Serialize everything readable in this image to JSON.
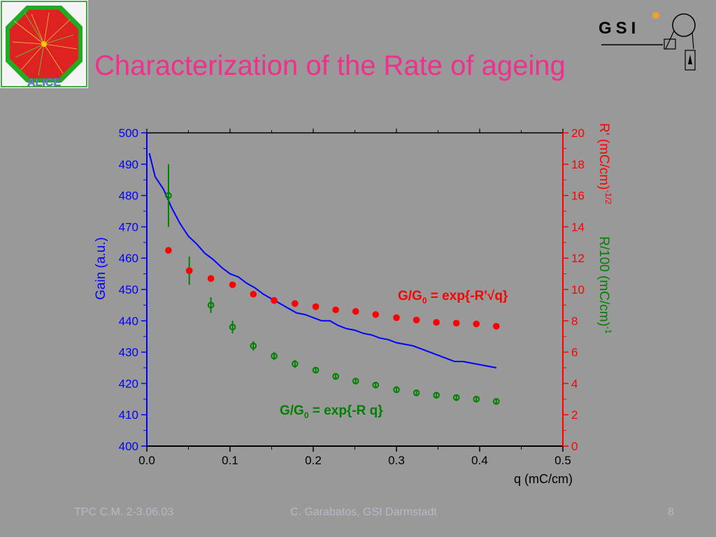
{
  "slide": {
    "title": "Characterization of the Rate of ageing",
    "footer_left": "TPC C.M. 2-3.06.03",
    "footer_center": "C. Garabatos, GSI Darmstadt",
    "page_number": "8"
  },
  "logos": {
    "alice_text": "ALICE",
    "gsi_text": "GSI"
  },
  "chart_data": {
    "type": "scatter",
    "xlabel": "q (mC/cm)",
    "xlim": [
      0.0,
      0.5
    ],
    "x_ticks": [
      "0.0",
      "0.1",
      "0.2",
      "0.3",
      "0.4",
      "0.5"
    ],
    "ylabel_left": "Gain (a.u.)",
    "ylim_left": [
      400,
      500
    ],
    "y_ticks_left": [
      "400",
      "410",
      "420",
      "430",
      "440",
      "450",
      "460",
      "470",
      "480",
      "490",
      "500"
    ],
    "ylabel_right_red": "R' (mC/cm)",
    "ylabel_right_red_exp": "-1/2",
    "ylabel_right_green": "R/100 (mC/cm)",
    "ylabel_right_green_exp": "-1",
    "ylim_right": [
      0,
      20
    ],
    "y_ticks_right": [
      "0",
      "2",
      "4",
      "6",
      "8",
      "10",
      "12",
      "14",
      "16",
      "18",
      "20"
    ],
    "colors": {
      "gain": "#0000ff",
      "red": "#ff0000",
      "green": "#008000",
      "axis": "#000000"
    },
    "series": [
      {
        "axis": "left",
        "style": "line",
        "x": [
          0.003,
          0.01,
          0.02,
          0.03,
          0.04,
          0.05,
          0.06,
          0.07,
          0.08,
          0.09,
          0.1,
          0.11,
          0.12,
          0.13,
          0.14,
          0.15,
          0.16,
          0.17,
          0.18,
          0.19,
          0.2,
          0.21,
          0.22,
          0.23,
          0.24,
          0.25,
          0.26,
          0.27,
          0.28,
          0.29,
          0.3,
          0.31,
          0.32,
          0.33,
          0.34,
          0.35,
          0.36,
          0.37,
          0.38,
          0.39,
          0.4,
          0.41,
          0.42
        ],
        "values": [
          493.5,
          486,
          482,
          476,
          471,
          467,
          464.5,
          461.5,
          459.5,
          457,
          455,
          454,
          452,
          450.5,
          448.5,
          447,
          445.5,
          444,
          442.5,
          442,
          441,
          440,
          440,
          438.5,
          437.5,
          437,
          436,
          435.5,
          434.5,
          434,
          433,
          432.5,
          432,
          431,
          430,
          429,
          428,
          427,
          427,
          426.5,
          426,
          425.5,
          425
        ]
      },
      {
        "axis": "right",
        "style": "filled-dots",
        "x": [
          0.026,
          0.051,
          0.077,
          0.103,
          0.128,
          0.153,
          0.178,
          0.203,
          0.227,
          0.251,
          0.275,
          0.3,
          0.324,
          0.348,
          0.372,
          0.396,
          0.42
        ],
        "values": [
          12.5,
          11.2,
          10.7,
          10.3,
          9.7,
          9.3,
          9.1,
          8.9,
          8.7,
          8.6,
          8.4,
          8.2,
          8.05,
          7.9,
          7.85,
          7.8,
          7.65
        ]
      },
      {
        "axis": "right",
        "style": "open-circles",
        "x": [
          0.026,
          0.051,
          0.077,
          0.103,
          0.128,
          0.153,
          0.178,
          0.203,
          0.227,
          0.251,
          0.275,
          0.3,
          0.324,
          0.348,
          0.372,
          0.396,
          0.42
        ],
        "values": [
          16.0,
          11.2,
          9.0,
          7.6,
          6.4,
          5.75,
          5.25,
          4.85,
          4.45,
          4.15,
          3.9,
          3.6,
          3.4,
          3.25,
          3.1,
          3.0,
          2.85
        ],
        "errors": [
          2.0,
          0.9,
          0.5,
          0.4,
          0.3,
          0.25,
          0.25,
          0.2,
          0.2,
          0.2,
          0.15,
          0.15,
          0.15,
          0.15,
          0.15,
          0.15,
          0.15
        ]
      }
    ],
    "annotations": [
      {
        "text_main": "G/G",
        "text_sub": "0",
        "text_rest": " = exp{-R'√q}",
        "color": "#ff0000"
      },
      {
        "text_main": "G/G",
        "text_sub": "0",
        "text_rest": " = exp{-R q}",
        "color": "#008000"
      }
    ]
  }
}
